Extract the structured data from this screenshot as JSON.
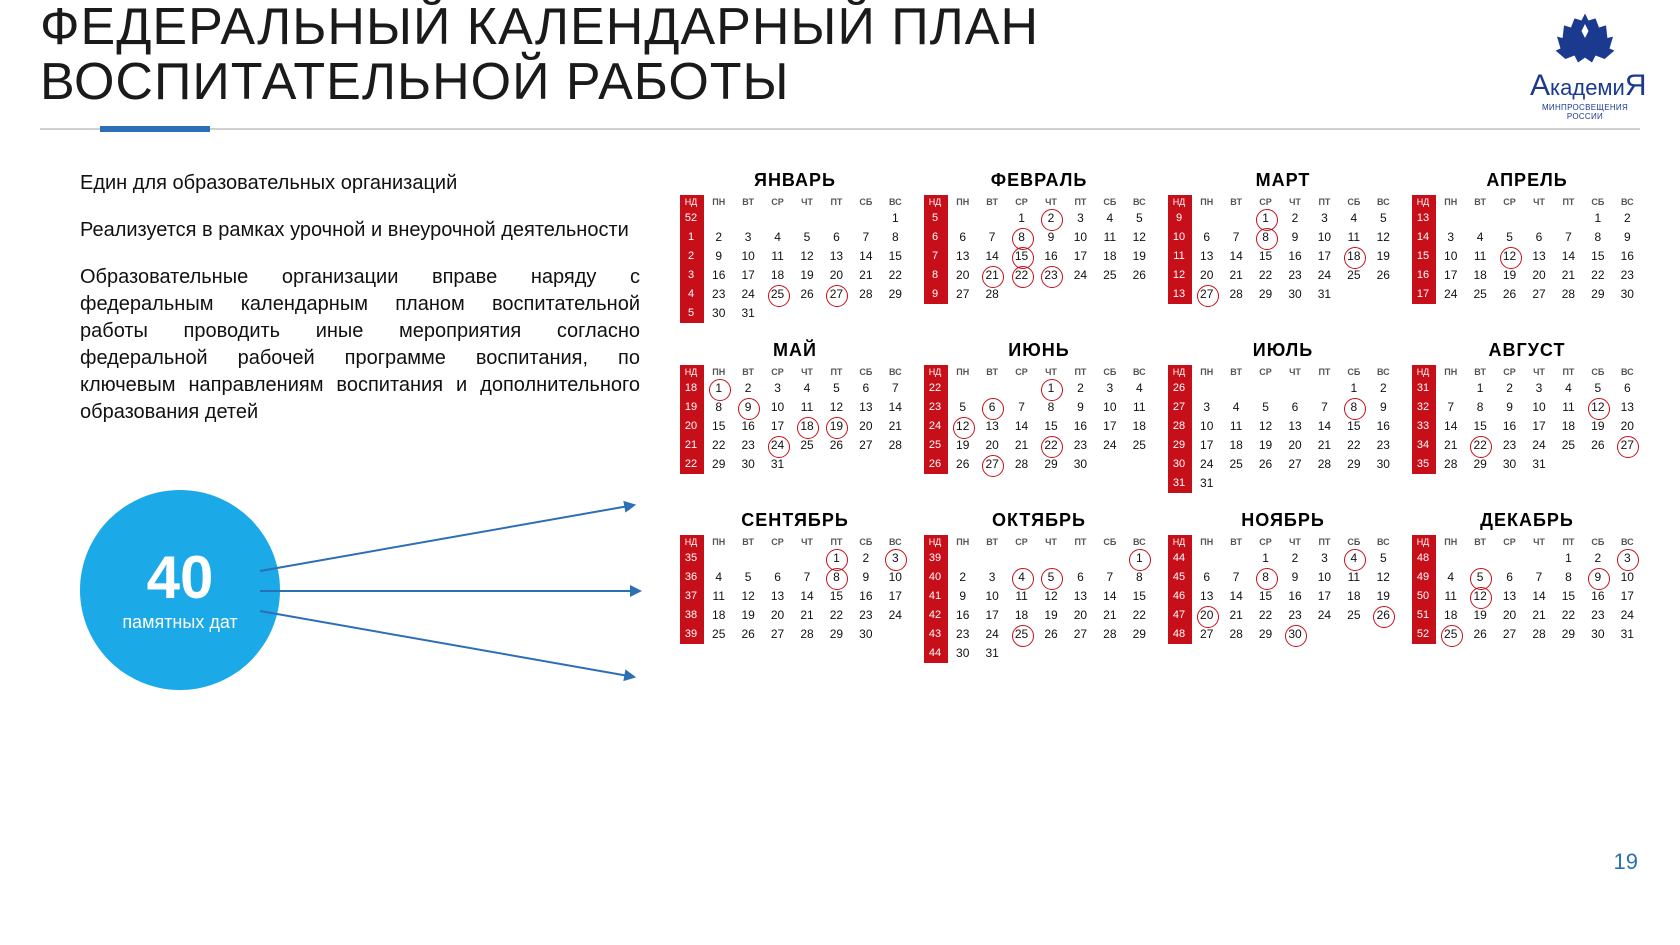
{
  "title_line1": "ФЕДЕРАЛЬНЫЙ КАЛЕНДАРНЫЙ ПЛАН",
  "title_line2": "ВОСПИТАТЕЛЬНОЙ РАБОТЫ",
  "logo": {
    "brand": "АкадемиЯ",
    "sub": "МИНПРОСВЕЩЕНИЯ РОССИИ"
  },
  "paragraphs": [
    "Един для образовательных организаций",
    "Реализуется в рамках урочной и внеурочной деятельности",
    "Образовательные организации вправе наряду с федеральным календарным планом воспитательной работы проводить иные мероприятия согласно федеральной рабочей программе воспитания, по ключевым направлениям воспитания и дополнительного образования детей"
  ],
  "circle": {
    "number": "40",
    "label": "памятных дат",
    "bg": "#1ba9e8"
  },
  "arrows_color": "#2c6fb5",
  "page_number": "19",
  "colors": {
    "accent": "#2c6fb5",
    "red": "#c70f19",
    "text": "#111111"
  },
  "day_labels": [
    "ПН",
    "ВТ",
    "СР",
    "ЧТ",
    "ПТ",
    "СБ",
    "ВС"
  ],
  "week_header": "НД",
  "months": [
    {
      "name": "ЯНВАРЬ",
      "firstDow": 7,
      "days": 31,
      "startWeek": 52,
      "circled": [
        25,
        27
      ]
    },
    {
      "name": "ФЕВРАЛЬ",
      "firstDow": 3,
      "days": 28,
      "startWeek": 5,
      "circled": [
        2,
        8,
        15,
        21,
        22,
        23
      ]
    },
    {
      "name": "МАРТ",
      "firstDow": 3,
      "days": 31,
      "startWeek": 9,
      "circled": [
        1,
        8,
        18,
        27
      ]
    },
    {
      "name": "АПРЕЛЬ",
      "firstDow": 6,
      "days": 30,
      "startWeek": 13,
      "circled": [
        12
      ]
    },
    {
      "name": "МАЙ",
      "firstDow": 1,
      "days": 31,
      "startWeek": 18,
      "circled": [
        1,
        9,
        18,
        19,
        24
      ]
    },
    {
      "name": "ИЮНЬ",
      "firstDow": 4,
      "days": 30,
      "startWeek": 22,
      "circled": [
        1,
        6,
        12,
        22,
        27
      ]
    },
    {
      "name": "ИЮЛЬ",
      "firstDow": 6,
      "days": 31,
      "startWeek": 26,
      "circled": [
        8
      ]
    },
    {
      "name": "АВГУСТ",
      "firstDow": 2,
      "days": 31,
      "startWeek": 31,
      "circled": [
        12,
        22,
        27
      ]
    },
    {
      "name": "СЕНТЯБРЬ",
      "firstDow": 5,
      "days": 30,
      "startWeek": 35,
      "circled": [
        1,
        3,
        8
      ]
    },
    {
      "name": "ОКТЯБРЬ",
      "firstDow": 7,
      "days": 31,
      "startWeek": 39,
      "circled": [
        1,
        4,
        5,
        25
      ]
    },
    {
      "name": "НОЯБРЬ",
      "firstDow": 3,
      "days": 30,
      "startWeek": 44,
      "circled": [
        4,
        8,
        20,
        26,
        30
      ]
    },
    {
      "name": "ДЕКАБРЬ",
      "firstDow": 5,
      "days": 31,
      "startWeek": 48,
      "circled": [
        3,
        5,
        9,
        12,
        25
      ]
    }
  ]
}
